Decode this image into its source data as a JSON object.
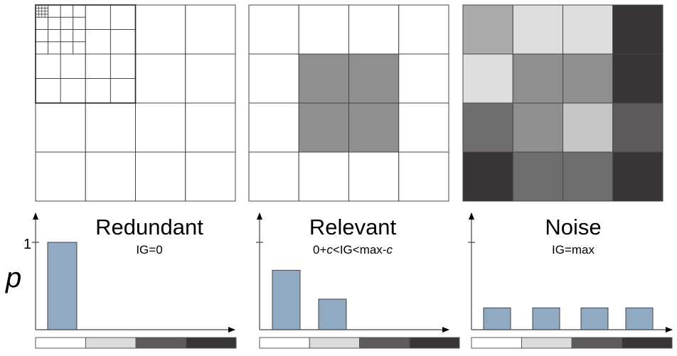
{
  "ylabel": "p",
  "ytick": "1",
  "colors": {
    "bar": "#8faac2",
    "white": "#ffffff",
    "light": "#dcdcdc",
    "dark": "#5e5b5a",
    "black": "#383534"
  },
  "grayscale_legend": [
    "#ffffff",
    "#dcdcdc",
    "#5e5b5a",
    "#383534"
  ],
  "panels": [
    {
      "id": "redundant",
      "title": "Redundant",
      "subtitle": "IG=0",
      "bars": [
        1.0
      ],
      "image_grid": [
        [
          "#ffffff",
          "#ffffff",
          "#ffffff",
          "#ffffff"
        ],
        [
          "#ffffff",
          "#ffffff",
          "#ffffff",
          "#ffffff"
        ],
        [
          "#ffffff",
          "#ffffff",
          "#ffffff",
          "#ffffff"
        ],
        [
          "#ffffff",
          "#ffffff",
          "#ffffff",
          "#ffffff"
        ]
      ]
    },
    {
      "id": "relevant",
      "title": "Relevant",
      "subtitle": "0+c<IG<max-c",
      "bars": [
        0.68,
        0.35
      ],
      "image_grid": [
        [
          "#ffffff",
          "#ffffff",
          "#ffffff",
          "#ffffff"
        ],
        [
          "#ffffff",
          "#8f8f8f",
          "#8f8f8f",
          "#ffffff"
        ],
        [
          "#ffffff",
          "#8f8f8f",
          "#8f8f8f",
          "#ffffff"
        ],
        [
          "#ffffff",
          "#ffffff",
          "#ffffff",
          "#ffffff"
        ]
      ]
    },
    {
      "id": "noise",
      "title": "Noise",
      "subtitle": "IG=max",
      "bars": [
        0.25,
        0.25,
        0.25,
        0.25
      ],
      "image_grid": [
        [
          "#a9a9a9",
          "#dedede",
          "#dedede",
          "#383534"
        ],
        [
          "#dedede",
          "#8f8f8f",
          "#8f8f8f",
          "#383534"
        ],
        [
          "#6e6e6e",
          "#8f8f8f",
          "#c6c6c6",
          "#5e5b5a"
        ],
        [
          "#383534",
          "#6e6e6e",
          "#6e6e6e",
          "#383534"
        ]
      ]
    }
  ]
}
